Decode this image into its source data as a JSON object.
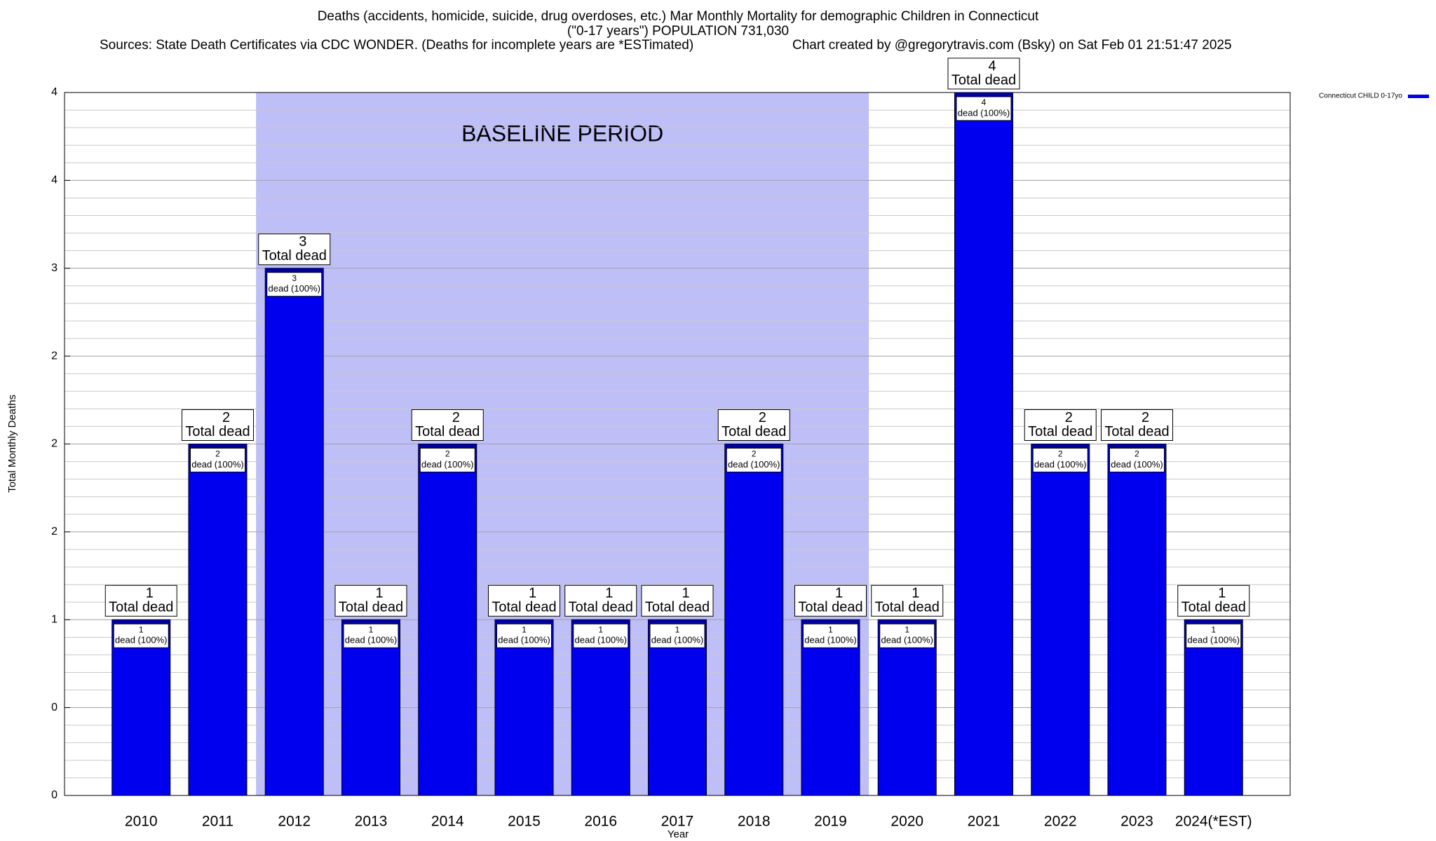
{
  "chart_data": {
    "type": "bar",
    "title_lines": [
      "Deaths (accidents, homicide, suicide, drug overdoses, etc.) Mar Monthly Mortality for demographic Children in Connecticut",
      "(\"0-17 years\") POPULATION 731,030"
    ],
    "sources": "Sources: State Death Certificates via CDC WONDER. (Deaths for incomplete years are *ESTimated)",
    "credit": "Chart created by @gregorytravis.com (Bsky) on Sat Feb 01 21:51:47 2025",
    "xlabel": "Year",
    "ylabel": "Total Monthly Deaths",
    "categories": [
      "2010",
      "2011",
      "2012",
      "2013",
      "2014",
      "2015",
      "2016",
      "2017",
      "2018",
      "2019",
      "2020",
      "2021",
      "2022",
      "2023",
      "2024(*EST)"
    ],
    "series": [
      {
        "name": "Connecticut CHILD 0-17yo",
        "color": "#0000ee",
        "values": [
          1,
          2,
          3,
          1,
          2,
          1,
          1,
          1,
          2,
          1,
          1,
          4,
          2,
          2,
          1
        ]
      }
    ],
    "total_label_text": "Total dead",
    "inner_label_text": "dead (100%)",
    "shaded_region": {
      "label": "BASELINE PERIOD",
      "from": "2012",
      "to": "2019",
      "color": "#bfbff8"
    },
    "ylim": [
      0,
      4
    ],
    "yticks": [
      0,
      {
        "value": 0.5,
        "label": "0"
      },
      1,
      {
        "value": 1.5,
        "label": "2"
      },
      2,
      {
        "value": 2.5,
        "label": "2"
      },
      3,
      {
        "value": 3.5,
        "label": "4"
      },
      4
    ],
    "minor_yticks": [
      0.1,
      0.2,
      0.3,
      0.4,
      0.6,
      0.7,
      0.8,
      0.9,
      1.1,
      1.2,
      1.3,
      1.4,
      1.6,
      1.7,
      1.8,
      1.9,
      2.1,
      2.2,
      2.3,
      2.4,
      2.6,
      2.7,
      2.8,
      2.9,
      3.1,
      3.2,
      3.3,
      3.4,
      3.6,
      3.7,
      3.8,
      3.9
    ],
    "grid": true,
    "legend": "top-right"
  }
}
